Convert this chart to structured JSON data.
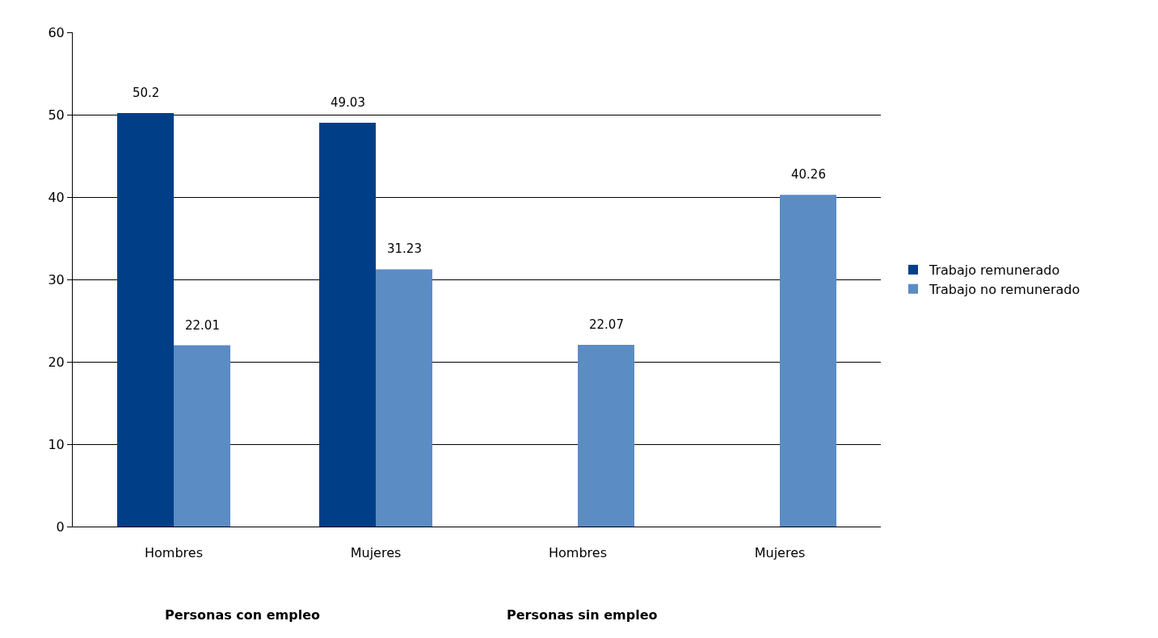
{
  "chart_data": {
    "type": "bar",
    "categories": [
      "Hombres",
      "Mujeres",
      "Hombres",
      "Mujeres"
    ],
    "series": [
      {
        "name": "Trabajo remunerado",
        "color": "#003f87",
        "values": [
          50.2,
          49.03,
          null,
          null
        ]
      },
      {
        "name": "Trabajo no remunerado",
        "color": "#5b8cc4",
        "values": [
          22.01,
          31.23,
          22.07,
          40.26
        ]
      }
    ],
    "ylim": [
      0,
      60
    ],
    "yticks": [
      0,
      10,
      20,
      30,
      40,
      50,
      60
    ],
    "grid": "y",
    "legend": "right",
    "data_labels": true,
    "annotations": [
      "Personas con empleo",
      "Personas sin empleo"
    ]
  }
}
